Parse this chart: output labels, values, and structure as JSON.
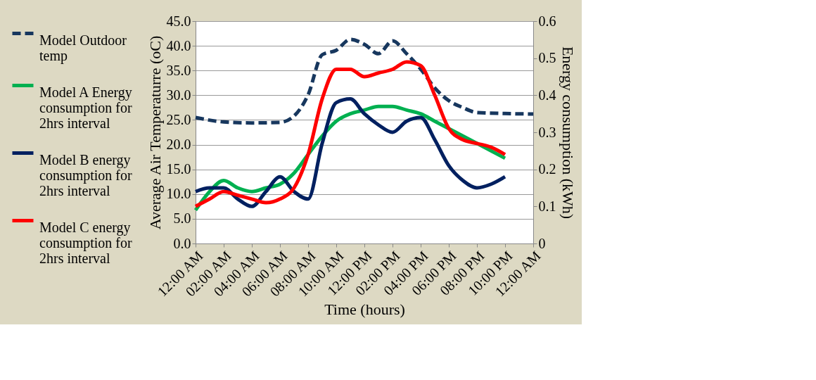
{
  "chart_data": {
    "type": "line",
    "xlabel": "Time (hours)",
    "ylabel": "Average Air Temperaturre (oC)",
    "y2label": "Energy consumption (kWh)",
    "xlim": [
      0,
      24
    ],
    "xticks": [
      {
        "value": 0,
        "label": "12:00 AM"
      },
      {
        "value": 2,
        "label": "02:00 AM"
      },
      {
        "value": 4,
        "label": "04:00 AM"
      },
      {
        "value": 6,
        "label": "06:00 AM"
      },
      {
        "value": 8,
        "label": "08:00 AM"
      },
      {
        "value": 10,
        "label": "10:00 AM"
      },
      {
        "value": 12,
        "label": "12:00 PM"
      },
      {
        "value": 14,
        "label": "02:00 PM"
      },
      {
        "value": 16,
        "label": "04:00 PM"
      },
      {
        "value": 18,
        "label": "06:00 PM"
      },
      {
        "value": 20,
        "label": "08:00 PM"
      },
      {
        "value": 22,
        "label": "10:00 PM"
      },
      {
        "value": 24,
        "label": "12:00 AM"
      }
    ],
    "ylim": [
      0,
      45
    ],
    "yticks": [
      {
        "value": 0,
        "label": "0.0"
      },
      {
        "value": 5,
        "label": "5.0"
      },
      {
        "value": 10,
        "label": "10.0"
      },
      {
        "value": 15,
        "label": "15.0"
      },
      {
        "value": 20,
        "label": "20.0"
      },
      {
        "value": 25,
        "label": "25.0"
      },
      {
        "value": 30,
        "label": "30.0"
      },
      {
        "value": 35,
        "label": "35.0"
      },
      {
        "value": 40,
        "label": "40.0"
      },
      {
        "value": 45,
        "label": "45.0"
      }
    ],
    "y2lim": [
      0,
      0.6
    ],
    "y2ticks": [
      0,
      0.1,
      0.2,
      0.3,
      0.4,
      0.5,
      0.6
    ],
    "grid": "y",
    "legend": "left",
    "series": [
      {
        "name": "Model  Outdoor temp",
        "color": "#17375e",
        "line_style": "dashed",
        "x": [
          0,
          2,
          4,
          6,
          7,
          8,
          9,
          10,
          11,
          12,
          13,
          14,
          15,
          16,
          17,
          18,
          19,
          20,
          22,
          24
        ],
        "values": [
          25.5,
          24.6,
          24.4,
          24.5,
          25.8,
          30.1,
          38.2,
          39.1,
          41.3,
          40.3,
          38.4,
          41.0,
          38.4,
          35.3,
          31.5,
          28.9,
          27.5,
          26.5,
          26.3,
          26.2
        ]
      },
      {
        "name": "Model A Energy consumption for 2hrs interval",
        "color": "#00b050",
        "line_style": "solid",
        "axis": "y2",
        "x": [
          0,
          1,
          2,
          3,
          4,
          5,
          6,
          7,
          8,
          9,
          10,
          11,
          12,
          13,
          14,
          15,
          16,
          17,
          18,
          19,
          20,
          21,
          22
        ],
        "values": [
          0.09,
          0.14,
          0.17,
          0.15,
          0.14,
          0.15,
          0.16,
          0.19,
          0.24,
          0.29,
          0.33,
          0.35,
          0.36,
          0.37,
          0.37,
          0.36,
          0.35,
          0.33,
          0.31,
          0.29,
          0.27,
          0.25,
          0.23
        ]
      },
      {
        "name": "Model B energy consumption for 2hrs interval",
        "color": "#002060",
        "line_style": "solid",
        "axis": "y2",
        "x": [
          0,
          1,
          2,
          3,
          4,
          5,
          6,
          7,
          8,
          9,
          10,
          11,
          12,
          13,
          14,
          15,
          16,
          17,
          18,
          19,
          20,
          21,
          22
        ],
        "values": [
          0.14,
          0.15,
          0.15,
          0.12,
          0.1,
          0.14,
          0.18,
          0.14,
          0.12,
          0.27,
          0.38,
          0.39,
          0.35,
          0.32,
          0.3,
          0.33,
          0.34,
          0.28,
          0.21,
          0.17,
          0.15,
          0.16,
          0.18
        ]
      },
      {
        "name": "Model C energy consumption for 2hrs interval",
        "color": "#ff0000",
        "line_style": "solid",
        "axis": "y2",
        "x": [
          0,
          1,
          2,
          3,
          4,
          5,
          6,
          7,
          8,
          9,
          10,
          11,
          12,
          13,
          14,
          15,
          16,
          17,
          18,
          19,
          20,
          21,
          22
        ],
        "values": [
          0.1,
          0.12,
          0.14,
          0.13,
          0.12,
          0.11,
          0.12,
          0.15,
          0.24,
          0.39,
          0.47,
          0.47,
          0.45,
          0.46,
          0.47,
          0.49,
          0.48,
          0.4,
          0.31,
          0.28,
          0.27,
          0.26,
          0.24
        ]
      }
    ]
  }
}
